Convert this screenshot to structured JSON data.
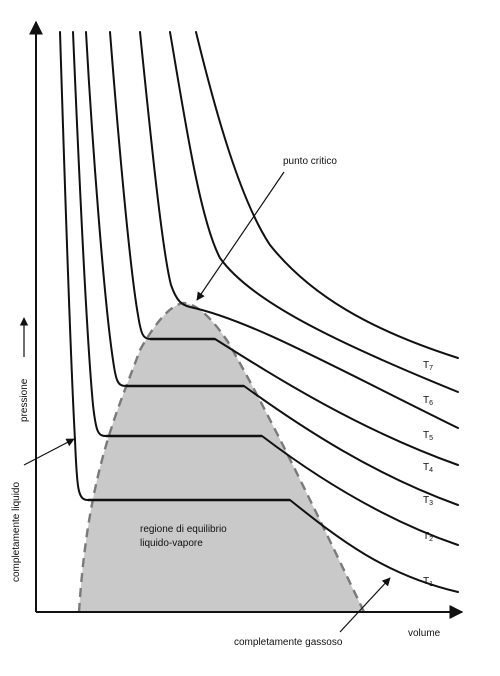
{
  "diagram": {
    "labels": {
      "critical_point": "punto critico",
      "equilibrium_region_line1": "regione di equilibrio",
      "equilibrium_region_line2": "liquido-vapore",
      "x_axis": "volume",
      "y_axis": "pressione",
      "liquid": "completamente liquido",
      "gas": "completamente gassoso"
    },
    "isotherms": [
      {
        "name": "T1",
        "symbol": "T",
        "sub": "1"
      },
      {
        "name": "T2",
        "symbol": "T",
        "sub": "2"
      },
      {
        "name": "T3",
        "symbol": "T",
        "sub": "3"
      },
      {
        "name": "T4",
        "symbol": "T",
        "sub": "4"
      },
      {
        "name": "T5",
        "symbol": "T",
        "sub": "5"
      },
      {
        "name": "T6",
        "symbol": "T",
        "sub": "6"
      },
      {
        "name": "T7",
        "symbol": "T",
        "sub": "7"
      }
    ],
    "colors": {
      "ink": "#111111",
      "region_fill": "#c9c9c9",
      "dome_dash": "#7a7a7a"
    }
  }
}
